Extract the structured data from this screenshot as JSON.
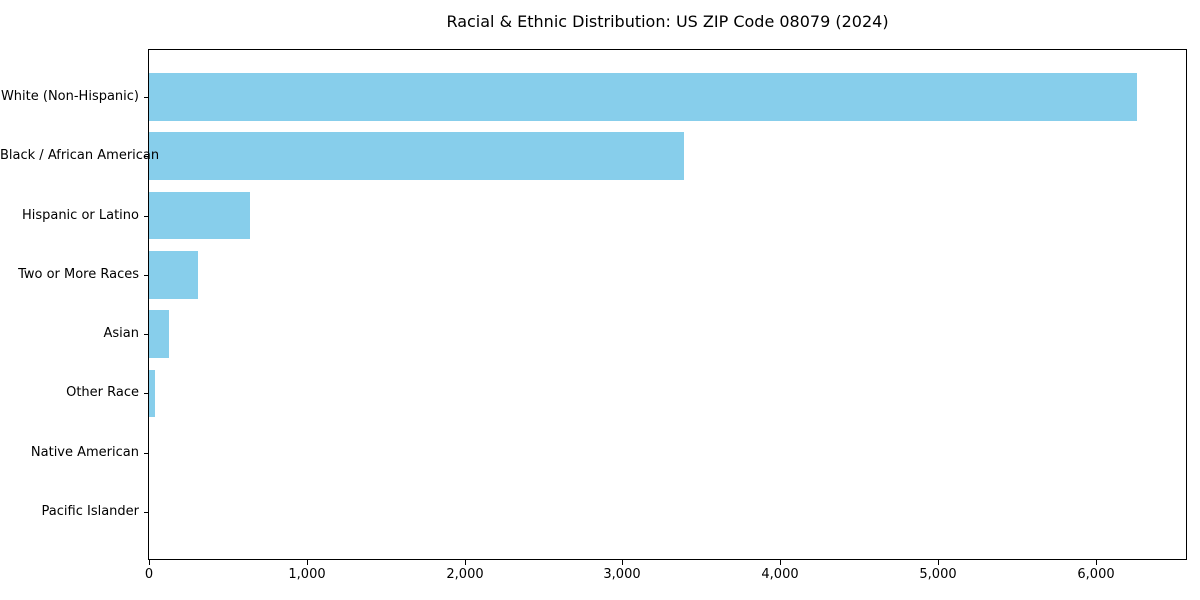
{
  "chart_data": {
    "type": "bar",
    "orientation": "horizontal",
    "title": "Racial & Ethnic Distribution: US ZIP Code 08079 (2024)",
    "categories": [
      "White (Non-Hispanic)",
      "Black / African American",
      "Hispanic or Latino",
      "Two or More Races",
      "Asian",
      "Other Race",
      "Native American",
      "Pacific Islander"
    ],
    "values": [
      6260,
      3390,
      640,
      310,
      125,
      38,
      0,
      0
    ],
    "xlabel": "",
    "ylabel": "",
    "xlim": [
      0,
      6573
    ],
    "xticks": [
      0,
      1000,
      2000,
      3000,
      4000,
      5000,
      6000
    ],
    "xtick_labels": [
      "0",
      "1,000",
      "2,000",
      "3,000",
      "4,000",
      "5,000",
      "6,000"
    ],
    "bar_color": "#87CEEB",
    "background_color": "#FFFFFF",
    "text_color": "#000000",
    "grid": false,
    "legend": null
  }
}
